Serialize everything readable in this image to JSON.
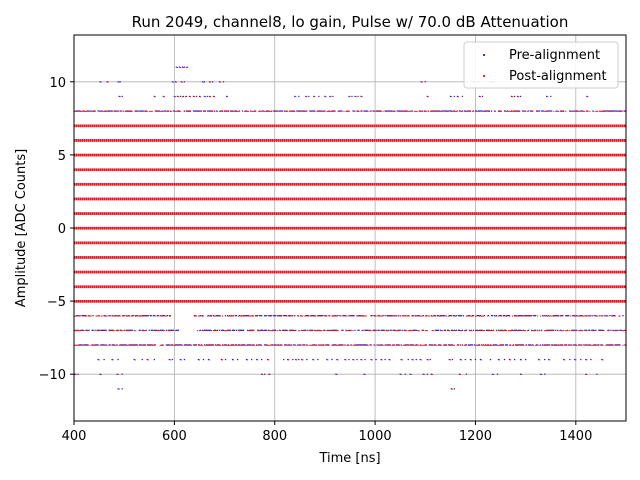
{
  "chart_data": {
    "type": "scatter",
    "title": "Run 2049, channel8, lo gain, Pulse w/ 70.0 dB Attenuation",
    "xlabel": "Time [ns]",
    "ylabel": "Amplitude [ADC Counts]",
    "xlim": [
      400,
      1500
    ],
    "ylim": [
      -13.2,
      13.2
    ],
    "xticks": [
      400,
      600,
      800,
      1000,
      1200,
      1400
    ],
    "yticks": [
      -10,
      -5,
      0,
      5,
      10
    ],
    "grid": true,
    "legend_position": "top-right",
    "sample_step_ns": 2,
    "series": [
      {
        "name": "Pre-alignment",
        "marker": "point",
        "color": "#1f1fd0",
        "dense_levels": [
          7,
          6,
          5,
          4,
          3,
          2,
          1,
          0,
          -1,
          -2,
          -3,
          -4,
          -5
        ],
        "sparse_levels": [
          {
            "y": 11,
            "x": [
              604,
              610,
              616,
              620,
              626
            ]
          },
          {
            "y": 10,
            "x": [
              452,
              466,
              488,
              492,
              596,
              602,
              614,
              620,
              656,
              660,
              670,
              676,
              690,
              698,
              1092,
              1100,
              1196,
              1206,
              1230,
              1236
            ]
          },
          {
            "y": 9,
            "x": [
              490,
              496,
              560,
              578,
              600,
              606,
              612,
              618,
              624,
              630,
              638,
              644,
              650,
              660,
              666,
              670,
              678,
              704,
              840,
              848,
              862,
              868,
              878,
              888,
              900,
              910,
              916,
              948,
              954,
              960,
              966,
              972,
              1104,
              1150,
              1158,
              1164,
              1174,
              1208,
              1214,
              1272,
              1278,
              1284,
              1290,
              1342,
              1350,
              1422
            ]
          },
          {
            "y": 8,
            "ranges": [
              [
                400,
                1500
              ]
            ],
            "density": 0.55
          },
          {
            "y": -6,
            "ranges": [
              [
                400,
                592
              ],
              [
                640,
                1500
              ]
            ],
            "density": 0.55
          },
          {
            "y": -7,
            "ranges": [
              [
                400,
                610
              ],
              [
                646,
                1500
              ]
            ],
            "density": 0.5
          },
          {
            "y": -8,
            "ranges": [
              [
                400,
                1500
              ]
            ],
            "density": 0.6
          },
          {
            "y": -9,
            "x": [
              448,
              460,
              476,
              488,
              520,
              536,
              546,
              560,
              590,
              596,
              612,
              620,
              648,
              658,
              668,
              694,
              702,
              716,
              726,
              744,
              754,
              764,
              774,
              786,
              818,
              826,
              836,
              842,
              848,
              854,
              864,
              876,
              886,
              904,
              914,
              924,
              940,
              948,
              956,
              964,
              972,
              980,
              992,
              1002,
              1012,
              1020,
              1028,
              1052,
              1066,
              1074,
              1082,
              1090,
              1104,
              1110,
              1148,
              1154,
              1170,
              1180,
              1190,
              1200,
              1210,
              1230,
              1246,
              1258,
              1268,
              1278,
              1290,
              1300,
              1326,
              1338,
              1346,
              1376,
              1388,
              1398,
              1410,
              1420,
              1430,
              1452
            ]
          },
          {
            "y": -10,
            "x": [
              402,
              408,
              452,
              486,
              496,
              774,
              780,
              790,
              922,
              978,
              1050,
              1060,
              1070,
              1096,
              1104,
              1112,
              1168,
              1182,
              1234,
              1244,
              1290,
              1330,
              1338,
              1420,
              1442
            ]
          },
          {
            "y": -11,
            "x": [
              488,
              496,
              1152,
              1158
            ]
          }
        ]
      },
      {
        "name": "Post-alignment",
        "marker": "point",
        "color": "#e41a1c",
        "dense_levels": [
          7,
          6,
          5,
          4,
          3,
          2,
          1,
          0,
          -1,
          -2,
          -3,
          -4,
          -5
        ],
        "sparse_levels": [
          {
            "y": 11,
            "x": [
              606,
              612,
              618,
              624
            ]
          },
          {
            "y": 10,
            "x": [
              454,
              468,
              490,
              598,
              604,
              616,
              658,
              672,
              692,
              1094,
              1198,
              1232
            ]
          },
          {
            "y": 9,
            "x": [
              492,
              562,
              580,
              602,
              608,
              616,
              622,
              632,
              640,
              652,
              662,
              672,
              680,
              706,
              842,
              864,
              880,
              902,
              912,
              950,
              962,
              974,
              1106,
              1152,
              1166,
              1210,
              1274,
              1286,
              1344,
              1424
            ]
          },
          {
            "y": 8,
            "ranges": [
              [
                400,
                1500
              ]
            ],
            "density": 0.55
          },
          {
            "y": -6,
            "ranges": [
              [
                400,
                592
              ],
              [
                640,
                1500
              ]
            ],
            "density": 0.55
          },
          {
            "y": -7,
            "ranges": [
              [
                400,
                610
              ],
              [
                646,
                1500
              ]
            ],
            "density": 0.5
          },
          {
            "y": -8,
            "ranges": [
              [
                400,
                1500
              ]
            ],
            "density": 0.6
          },
          {
            "y": -9,
            "x": [
              450,
              478,
              522,
              548,
              592,
              614,
              650,
              670,
              696,
              718,
              746,
              766,
              788,
              828,
              844,
              856,
              878,
              906,
              926,
              942,
              958,
              974,
              994,
              1014,
              1030,
              1054,
              1076,
              1092,
              1106,
              1150,
              1172,
              1192,
              1212,
              1248,
              1270,
              1292,
              1328,
              1348,
              1378,
              1400,
              1422,
              1454
            ]
          },
          {
            "y": -10,
            "x": [
              404,
              454,
              488,
              776,
              788,
              924,
              980,
              1052,
              1072,
              1098,
              1114,
              1170,
              1236,
              1292,
              1332,
              1422
            ]
          },
          {
            "y": -11,
            "x": [
              490,
              1154
            ]
          }
        ]
      }
    ]
  }
}
